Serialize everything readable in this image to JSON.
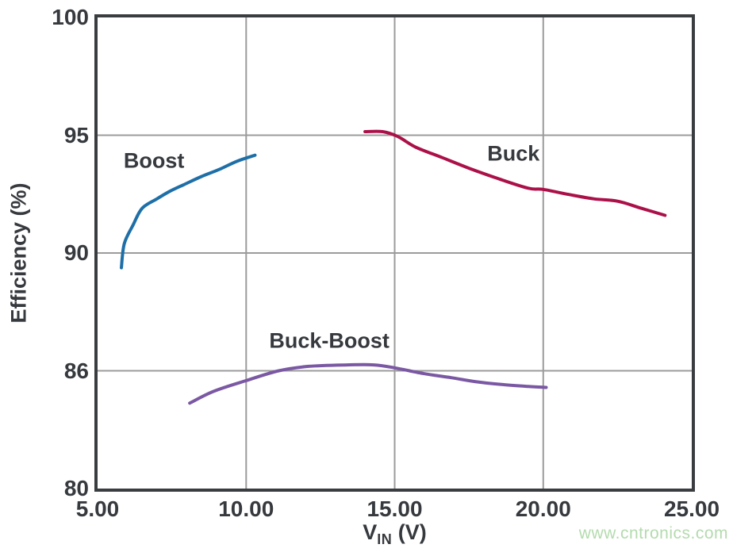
{
  "page": {
    "watermark": "www.cntronics.com"
  },
  "chart_data": {
    "type": "line",
    "title": "",
    "ylabel": "Efficiency (%)",
    "xlabel": {
      "main": "V",
      "sub": "IN",
      "unit": "(V)"
    },
    "x_range": [
      5,
      25
    ],
    "x_ticks": [
      {
        "value": 5,
        "label": "5.00"
      },
      {
        "value": 10,
        "label": "10.00"
      },
      {
        "value": 15,
        "label": "15.00"
      },
      {
        "value": 20,
        "label": "20.00"
      },
      {
        "value": 25,
        "label": "25.00"
      }
    ],
    "y_ticks": [
      {
        "value": 80,
        "label": "80"
      },
      {
        "value": 86,
        "label": "86"
      },
      {
        "value": 90,
        "label": "90"
      },
      {
        "value": 95,
        "label": "95"
      },
      {
        "value": 100,
        "label": "100"
      }
    ],
    "y_axis_note": "tick labels 80/86/90/95/100 are equally spaced (piecewise-linear scale)",
    "grid": true,
    "legend_position": "inline-labels",
    "series": [
      {
        "name": "Boost",
        "color": "#1e6fa7",
        "label_pos": {
          "x": 6.9,
          "y": 93.9
        },
        "points": [
          [
            5.8,
            89.5
          ],
          [
            5.9,
            90.4
          ],
          [
            6.2,
            91.2
          ],
          [
            6.5,
            91.9
          ],
          [
            7.0,
            92.3
          ],
          [
            7.4,
            92.6
          ],
          [
            7.9,
            92.9
          ],
          [
            8.5,
            93.25
          ],
          [
            9.1,
            93.55
          ],
          [
            9.7,
            93.9
          ],
          [
            10.3,
            94.15
          ]
        ]
      },
      {
        "name": "Buck",
        "color": "#ab1048",
        "label_pos": {
          "x": 19.0,
          "y": 94.2
        },
        "points": [
          [
            14.0,
            95.15
          ],
          [
            14.6,
            95.15
          ],
          [
            15.1,
            94.95
          ],
          [
            15.7,
            94.5
          ],
          [
            16.6,
            94.05
          ],
          [
            17.5,
            93.6
          ],
          [
            18.5,
            93.15
          ],
          [
            19.5,
            92.75
          ],
          [
            20.0,
            92.7
          ],
          [
            20.8,
            92.5
          ],
          [
            21.7,
            92.3
          ],
          [
            22.5,
            92.2
          ],
          [
            23.3,
            91.9
          ],
          [
            24.1,
            91.6
          ]
        ]
      },
      {
        "name": "Buck-Boost",
        "color": "#7a58a3",
        "label_pos": {
          "x": 12.8,
          "y": 87.0
        },
        "points": [
          [
            8.1,
            84.35
          ],
          [
            8.9,
            84.95
          ],
          [
            10.0,
            85.5
          ],
          [
            11.1,
            86.0
          ],
          [
            12.1,
            86.15
          ],
          [
            13.4,
            86.2
          ],
          [
            14.3,
            86.2
          ],
          [
            15.0,
            86.1
          ],
          [
            16.0,
            85.85
          ],
          [
            16.9,
            85.65
          ],
          [
            17.7,
            85.45
          ],
          [
            18.6,
            85.3
          ],
          [
            19.5,
            85.2
          ],
          [
            20.1,
            85.15
          ]
        ]
      }
    ],
    "colors": {
      "grid": "#9b9b9b",
      "frame": "#3a3d40",
      "text": "#36393d",
      "watermark": "#b4dbae"
    }
  }
}
